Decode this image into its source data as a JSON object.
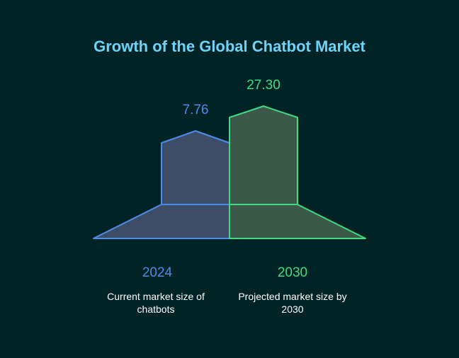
{
  "title": "Growth of the Global Chatbot Market",
  "colors": {
    "background": "#002326",
    "title": "#6dd3f7",
    "blue": "#4a8cea",
    "blue_fill": "#3d4d68",
    "green": "#3ddc84",
    "green_fill": "#3c5849"
  },
  "items": [
    {
      "year": "2024",
      "value": "7.76",
      "description": "Current market size of chatbots"
    },
    {
      "year": "2030",
      "value": "27.30",
      "description": "Projected market size by 2030"
    }
  ]
}
